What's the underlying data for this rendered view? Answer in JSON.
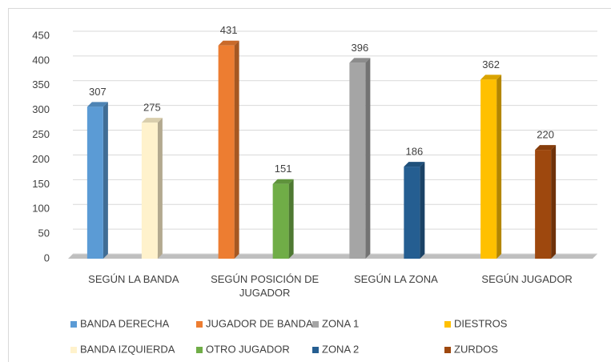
{
  "chart_data": {
    "type": "bar",
    "categories": [
      "SEGÚN LA BANDA",
      "SEGÚN POSICIÓN DE JUGADOR",
      "SEGÚN LA ZONA",
      "SEGÚN JUGADOR"
    ],
    "series": [
      {
        "name": "BANDA DERECHA",
        "color": "#5b9bd5",
        "values": [
          307,
          null,
          null,
          null
        ]
      },
      {
        "name": "BANDA IZQUIERDA",
        "color": "#fff2cc",
        "values": [
          275,
          null,
          null,
          null
        ]
      },
      {
        "name": "JUGADOR DE BANDA",
        "color": "#ed7d31",
        "values": [
          null,
          431,
          null,
          null
        ]
      },
      {
        "name": "OTRO JUGADOR",
        "color": "#70ad47",
        "values": [
          null,
          151,
          null,
          null
        ]
      },
      {
        "name": "ZONA 1",
        "color": "#a5a5a5",
        "values": [
          null,
          null,
          396,
          null
        ]
      },
      {
        "name": "ZONA 2",
        "color": "#255e91",
        "values": [
          null,
          null,
          186,
          null
        ]
      },
      {
        "name": "DIESTROS",
        "color": "#ffc000",
        "values": [
          null,
          null,
          null,
          362
        ]
      },
      {
        "name": "ZURDOS",
        "color": "#9e480e",
        "values": [
          null,
          null,
          null,
          220
        ]
      }
    ],
    "ylim": [
      0,
      450
    ],
    "yticks": [
      0,
      50,
      100,
      150,
      200,
      250,
      300,
      350,
      400,
      450
    ],
    "grid": true
  }
}
